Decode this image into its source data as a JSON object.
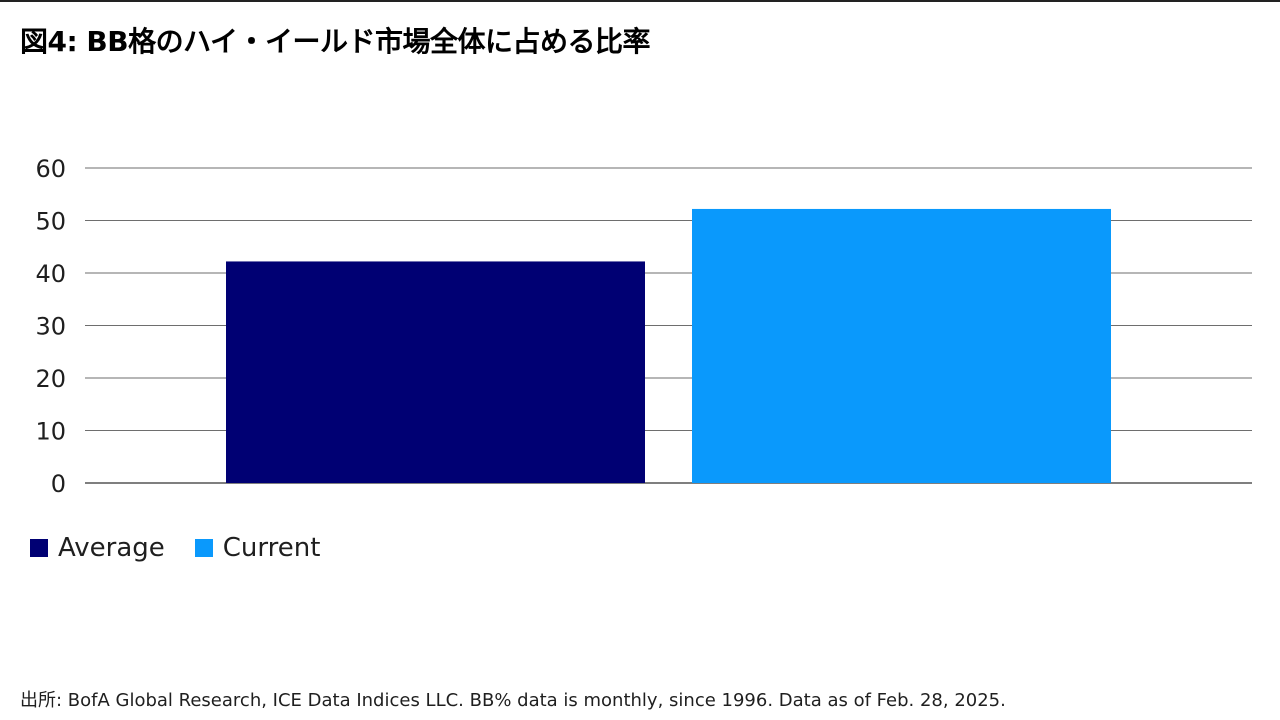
{
  "title": "図4: BB格のハイ・イールド市場全体に占める比率",
  "source": "出所: BofA Global Research, ICE Data Indices LLC. BB% data is monthly, since 1996. Data as of Feb. 28, 2025.",
  "chart_data": {
    "type": "bar",
    "title": "図4: BB格のハイ・イールド市場全体に占める比率",
    "xlabel": "",
    "ylabel": "",
    "ylim": [
      0,
      60
    ],
    "yticks": [
      0,
      10,
      20,
      30,
      40,
      50,
      60
    ],
    "grid": true,
    "legend_position": "bottom-left",
    "series": [
      {
        "name": "Average",
        "value": 42.2,
        "color": "#000073"
      },
      {
        "name": "Current",
        "value": 52.2,
        "color": "#0a99fc"
      }
    ]
  }
}
